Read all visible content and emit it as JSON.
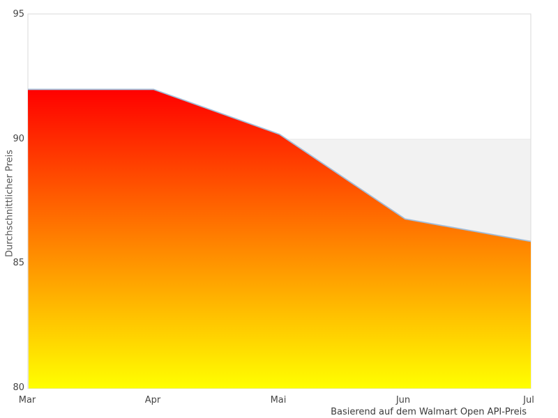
{
  "chart_data": {
    "type": "area",
    "title": "",
    "categories": [
      "Mar",
      "Apr",
      "Mai",
      "Jun",
      "Jul"
    ],
    "values": [
      92,
      92,
      90.2,
      86.8,
      85.9
    ],
    "series": [
      {
        "name": "Durchschnittlicher Preis",
        "values": [
          92,
          92,
          90.2,
          86.8,
          85.9
        ]
      }
    ],
    "xlabel": "Basierend auf dem Walmart Open API-Preis",
    "ylabel": "Durchschnittlicher Preis",
    "ylim": [
      80,
      95
    ],
    "yticks": [
      "95",
      "90",
      "85",
      "80"
    ],
    "grid": false,
    "legend_position": "none",
    "shaded_band": {
      "y_from": 90,
      "y_to": 80,
      "color": "#f2f2f2",
      "edge_color": "#e7e7e7"
    },
    "colors": {
      "area_gradient_top": "#ff0000",
      "area_gradient_bottom": "#ffff00",
      "line": "#a3bdd8",
      "plot_border": "#d9d9d9",
      "background": "#ffffff"
    }
  }
}
